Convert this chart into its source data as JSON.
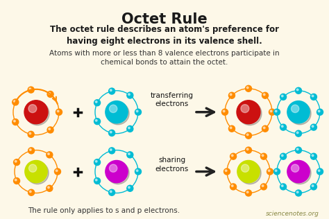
{
  "bg_color": "#fdf8e8",
  "title": "Octet Rule",
  "subtitle": "The octet rule describes an atom's preference for\nhaving eight electrons in its valence shell.",
  "desc": "Atoms with more or less than 8 valence electrons participate in\nchemical bonds to attain the octet.",
  "footer1": "The rule only applies to s and p electrons.",
  "footer2": "sciencenotes.org",
  "title_color": "#1a1a1a",
  "subtitle_color": "#1a1a1a",
  "desc_color": "#333333",
  "atom1_core": "#cc1111",
  "atom2_core": "#00bcd4",
  "atom3_core": "#c8e000",
  "atom4_core": "#cc00cc",
  "electron_orange": "#ff8c00",
  "electron_cyan": "#00bcd4",
  "orbit_color_orange": "#ff8c00",
  "orbit_color_cyan": "#00bcd4",
  "orbit_color_gray": "#aaaaaa",
  "arrow_color": "#222222",
  "label_transferring": "transferring\nelectrons",
  "label_sharing": "sharing\nelectrons"
}
